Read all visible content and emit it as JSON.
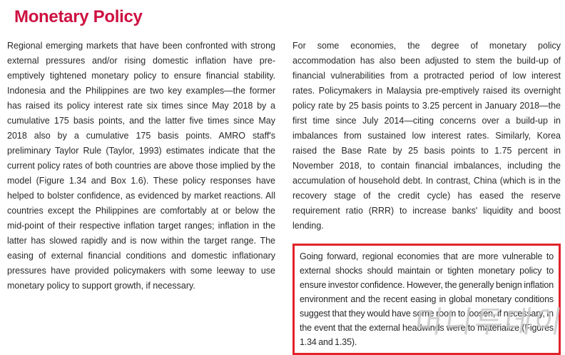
{
  "theme": {
    "page-bg": "#ffffff",
    "title-red": "#ce1141",
    "box-red": "#e1232a",
    "text-color": "#2a2729",
    "watermark-gray": "#c9c9c9"
  },
  "page": {
    "title": "Monetary Policy",
    "watermark": "머니투데이"
  },
  "content": {
    "left_column": {
      "paragraph": "Regional emerging markets that have been confronted with strong external pressures and/or rising domestic inflation have pre-emptively tightened monetary policy to ensure financial stability. Indonesia and the Philippines are two key examples—the former has raised its policy interest rate six times since May 2018 by a cumulative 175 basis points, and the latter five times since May 2018 also by a cumulative 175 basis points. AMRO staff's preliminary Taylor Rule (Taylor, 1993) estimates indicate that the current policy rates of both countries are above those implied by the model (Figure 1.34 and Box 1.6). These policy responses have helped to bolster confidence, as evidenced by market reactions. All countries except the Philippines are comfortably at or below the mid-point of their respective inflation target ranges; inflation in the latter has slowed rapidly and is now within the target range. The easing of external financial conditions and domestic inflationary pressures have provided policymakers with some leeway to use monetary policy to support growth, if necessary."
    },
    "right_column": {
      "paragraph": "For some economies, the degree of monetary policy accommodation has also been adjusted to stem the build-up of financial vulnerabilities from a protracted period of low interest rates. Policymakers in Malaysia pre-emptively raised its overnight policy rate by 25 basis points to 3.25 percent in January 2018—the first time since July 2014—citing concerns over a build-up in imbalances from sustained low interest rates. Similarly, Korea raised the Base Rate by 25 basis points to 1.75 percent in November 2018, to contain financial imbalances, including the accumulation of household debt. In contrast, China (which is in the recovery stage of the credit cycle) has eased the reserve requirement ratio (RRR) to increase banks' liquidity and boost lending.",
      "highlight_box": {
        "paragraph": "Going forward, regional economies that are more vulnerable to external shocks should maintain or tighten monetary policy to ensure investor confidence. However, the generally benign inflation environment and the recent easing in global monetary conditions suggest that they would have some room to loosen, if necessary, in the event that the external headwinds were to materialize (Figures 1.34 and 1.35)."
      }
    }
  }
}
